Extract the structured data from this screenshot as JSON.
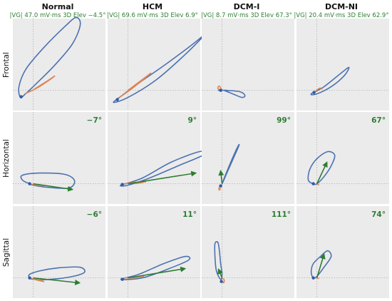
{
  "colors": {
    "panel_bg": "#ebebeb",
    "loop": "#4c72b0",
    "stloop": "#dd8452",
    "vector": "#2e7d32",
    "point": "#2f5aa8"
  },
  "columns": [
    {
      "title": "Normal",
      "subtitle": "|VG| 47.0 mV·ms   3D Elev −4.5°"
    },
    {
      "title": "HCM",
      "subtitle": "|VG| 69.6 mV·ms   3D Elev 6.9°"
    },
    {
      "title": "DCM-I",
      "subtitle": "|VG| 8.7 mV·ms   3D Elev 67.3°"
    },
    {
      "title": "DCM-NI",
      "subtitle": "|VG| 20.4 mV·ms   3D Elev 62.9°"
    }
  ],
  "rows": [
    {
      "label": "Frontal"
    },
    {
      "label": "Horizontal"
    },
    {
      "label": "Sagittal"
    }
  ],
  "chart_data": {
    "type": "line",
    "description_free": true,
    "grid_style": "dotted crosshair at origin",
    "panels": [
      {
        "row": "Frontal",
        "col": "Normal",
        "angle": "",
        "loop": [
          [
            -0.18,
            -0.1
          ],
          [
            -0.2,
            0.05
          ],
          [
            -0.1,
            0.3
          ],
          [
            0.15,
            0.6
          ],
          [
            0.45,
            0.9
          ],
          [
            0.6,
            1.02
          ],
          [
            0.66,
            0.92
          ],
          [
            0.55,
            0.65
          ],
          [
            0.3,
            0.35
          ],
          [
            0.05,
            0.1
          ],
          [
            -0.12,
            -0.06
          ],
          [
            -0.18,
            -0.1
          ]
        ],
        "st": [
          [
            -0.12,
            -0.05
          ],
          [
            0.05,
            0.03
          ],
          [
            0.22,
            0.14
          ],
          [
            0.3,
            0.2
          ],
          [
            0.18,
            0.12
          ],
          [
            0.02,
            0.02
          ]
        ],
        "vector": null,
        "point": [
          -0.17,
          -0.09
        ]
      },
      {
        "row": "Frontal",
        "col": "HCM",
        "angle": "",
        "loop": [
          [
            -0.2,
            -0.17
          ],
          [
            0.0,
            -0.1
          ],
          [
            0.4,
            0.15
          ],
          [
            0.8,
            0.5
          ],
          [
            1.1,
            0.8
          ],
          [
            1.15,
            0.85
          ],
          [
            0.95,
            0.68
          ],
          [
            0.55,
            0.38
          ],
          [
            0.15,
            0.1
          ],
          [
            -0.12,
            -0.1
          ],
          [
            -0.2,
            -0.17
          ]
        ],
        "st": [
          [
            -0.12,
            -0.1
          ],
          [
            0.05,
            0.02
          ],
          [
            0.2,
            0.14
          ],
          [
            0.32,
            0.24
          ],
          [
            0.2,
            0.15
          ],
          [
            0.0,
            0.0
          ]
        ],
        "vector": null,
        "point": [
          -0.15,
          -0.13
        ]
      },
      {
        "row": "Frontal",
        "col": "DCM-I",
        "angle": "",
        "loop": [
          [
            -0.05,
            0.0
          ],
          [
            0.05,
            0.0
          ],
          [
            0.25,
            -0.02
          ],
          [
            0.32,
            -0.07
          ],
          [
            0.28,
            -0.1
          ],
          [
            0.15,
            -0.05
          ],
          [
            0.02,
            0.0
          ],
          [
            -0.05,
            0.0
          ]
        ],
        "st": [
          [
            -0.02,
            0.0
          ],
          [
            -0.06,
            0.03
          ],
          [
            -0.04,
            0.06
          ],
          [
            -0.01,
            0.02
          ]
        ],
        "vector": null,
        "point": [
          -0.02,
          0.0
        ]
      },
      {
        "row": "Frontal",
        "col": "DCM-NI",
        "angle": "",
        "loop": [
          [
            -0.08,
            -0.05
          ],
          [
            0.1,
            0.05
          ],
          [
            0.35,
            0.25
          ],
          [
            0.45,
            0.32
          ],
          [
            0.38,
            0.2
          ],
          [
            0.2,
            0.05
          ],
          [
            0.0,
            -0.05
          ],
          [
            -0.08,
            -0.05
          ]
        ],
        "st": [
          [
            -0.03,
            -0.02
          ],
          [
            0.04,
            0.03
          ],
          [
            0.08,
            0.02
          ]
        ],
        "vector": null,
        "point": [
          -0.04,
          -0.03
        ]
      },
      {
        "row": "Horizontal",
        "col": "Normal",
        "angle": "−7°",
        "loop": [
          [
            -0.05,
            0.0
          ],
          [
            -0.15,
            0.05
          ],
          [
            -0.15,
            0.12
          ],
          [
            0.1,
            0.15
          ],
          [
            0.45,
            0.13
          ],
          [
            0.58,
            0.04
          ],
          [
            0.5,
            -0.06
          ],
          [
            0.2,
            -0.05
          ],
          [
            0.0,
            -0.02
          ],
          [
            -0.05,
            0.0
          ]
        ],
        "st": [
          [
            -0.05,
            0.0
          ],
          [
            0.05,
            -0.02
          ],
          [
            0.15,
            -0.03
          ],
          [
            0.06,
            -0.01
          ]
        ],
        "vector": [
          0.55,
          -0.08
        ],
        "point": [
          -0.05,
          0.0
        ]
      },
      {
        "row": "Horizontal",
        "col": "HCM",
        "angle": "9°",
        "loop": [
          [
            -0.1,
            -0.02
          ],
          [
            0.2,
            0.08
          ],
          [
            0.6,
            0.3
          ],
          [
            1.0,
            0.45
          ],
          [
            1.05,
            0.4
          ],
          [
            0.7,
            0.25
          ],
          [
            0.3,
            0.08
          ],
          [
            0.0,
            -0.02
          ],
          [
            -0.1,
            -0.02
          ]
        ],
        "st": [
          [
            -0.05,
            0.0
          ],
          [
            0.1,
            0.02
          ],
          [
            0.25,
            0.03
          ],
          [
            0.1,
            0.0
          ]
        ],
        "vector": [
          0.95,
          0.15
        ],
        "point": [
          -0.08,
          -0.01
        ]
      },
      {
        "row": "Horizontal",
        "col": "DCM-I",
        "angle": "99°",
        "loop": [
          [
            0.0,
            0.0
          ],
          [
            0.1,
            0.25
          ],
          [
            0.2,
            0.48
          ],
          [
            0.24,
            0.55
          ],
          [
            0.2,
            0.45
          ],
          [
            0.08,
            0.18
          ],
          [
            0.0,
            0.0
          ]
        ],
        "st": [
          [
            0.0,
            -0.02
          ],
          [
            -0.04,
            -0.05
          ],
          [
            -0.04,
            -0.09
          ],
          [
            -0.02,
            -0.06
          ]
        ],
        "vector": [
          -0.02,
          0.18
        ],
        "point": [
          -0.02,
          -0.03
        ]
      },
      {
        "row": "Horizontal",
        "col": "DCM-NI",
        "angle": "67°",
        "loop": [
          [
            -0.05,
            0.0
          ],
          [
            -0.12,
            0.05
          ],
          [
            -0.1,
            0.2
          ],
          [
            0.0,
            0.35
          ],
          [
            0.15,
            0.45
          ],
          [
            0.25,
            0.4
          ],
          [
            0.2,
            0.25
          ],
          [
            0.1,
            0.1
          ],
          [
            0.0,
            0.0
          ],
          [
            -0.05,
            0.0
          ]
        ],
        "st": [
          [
            0.0,
            0.0
          ],
          [
            0.03,
            -0.02
          ]
        ],
        "vector": [
          0.14,
          0.3
        ],
        "point": [
          -0.05,
          0.0
        ]
      },
      {
        "row": "Sagittal",
        "col": "Normal",
        "angle": "−6°",
        "loop": [
          [
            -0.05,
            0.0
          ],
          [
            -0.05,
            0.05
          ],
          [
            0.1,
            0.1
          ],
          [
            0.35,
            0.14
          ],
          [
            0.65,
            0.15
          ],
          [
            0.72,
            0.08
          ],
          [
            0.55,
            0.02
          ],
          [
            0.25,
            -0.02
          ],
          [
            0.02,
            -0.02
          ],
          [
            -0.05,
            0.0
          ]
        ],
        "st": [
          [
            -0.05,
            0.0
          ],
          [
            0.05,
            -0.03
          ],
          [
            0.15,
            -0.05
          ],
          [
            0.05,
            -0.01
          ]
        ],
        "vector": [
          0.65,
          -0.07
        ],
        "point": [
          -0.05,
          0.0
        ]
      },
      {
        "row": "Sagittal",
        "col": "HCM",
        "angle": "11°",
        "loop": [
          [
            -0.1,
            -0.02
          ],
          [
            0.15,
            0.05
          ],
          [
            0.5,
            0.2
          ],
          [
            0.8,
            0.3
          ],
          [
            0.85,
            0.25
          ],
          [
            0.55,
            0.12
          ],
          [
            0.2,
            0.0
          ],
          [
            -0.1,
            -0.02
          ]
        ],
        "st": [
          [
            -0.05,
            0.0
          ],
          [
            0.08,
            0.0
          ],
          [
            0.22,
            0.02
          ],
          [
            0.1,
            0.0
          ]
        ],
        "vector": [
          0.8,
          0.13
        ],
        "point": [
          -0.08,
          -0.02
        ]
      },
      {
        "row": "Sagittal",
        "col": "DCM-I",
        "angle": "111°",
        "loop": [
          [
            -0.02,
            -0.02
          ],
          [
            -0.08,
            0.1
          ],
          [
            -0.1,
            0.3
          ],
          [
            -0.1,
            0.48
          ],
          [
            -0.06,
            0.5
          ],
          [
            -0.04,
            0.4
          ],
          [
            -0.02,
            0.2
          ],
          [
            0.0,
            0.05
          ],
          [
            -0.02,
            -0.02
          ]
        ],
        "st": [
          [
            0.0,
            0.0
          ],
          [
            0.03,
            -0.03
          ],
          [
            0.02,
            -0.07
          ],
          [
            0.0,
            -0.04
          ]
        ],
        "vector": [
          -0.05,
          0.12
        ],
        "point": [
          -0.01,
          -0.05
        ]
      },
      {
        "row": "Sagittal",
        "col": "DCM-NI",
        "angle": "74°",
        "loop": [
          [
            -0.05,
            0.0
          ],
          [
            -0.08,
            0.08
          ],
          [
            -0.05,
            0.2
          ],
          [
            0.05,
            0.3
          ],
          [
            0.15,
            0.38
          ],
          [
            0.2,
            0.3
          ],
          [
            0.1,
            0.15
          ],
          [
            0.0,
            0.02
          ],
          [
            -0.05,
            0.0
          ]
        ],
        "st": [
          [
            0.0,
            0.0
          ],
          [
            0.03,
            -0.01
          ]
        ],
        "vector": [
          0.1,
          0.33
        ],
        "point": [
          -0.05,
          0.0
        ]
      }
    ]
  }
}
